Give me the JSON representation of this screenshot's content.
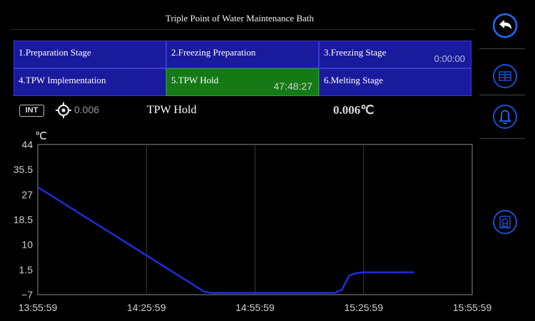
{
  "header": {
    "title": "Triple Point of Water Maintenance Bath"
  },
  "stages": [
    {
      "label": "1.Preparation Stage",
      "time": ""
    },
    {
      "label": "2.Freezing Preparation",
      "time": ""
    },
    {
      "label": "3.Freezing Stage",
      "time": "0:00:00"
    },
    {
      "label": "4.TPW Implementation",
      "time": ""
    },
    {
      "label": "5.TPW Hold",
      "time": "47:48:27",
      "active": true
    },
    {
      "label": "6.Melting Stage",
      "time": ""
    }
  ],
  "status": {
    "sensor_badge": "INT",
    "set_value": "0.006",
    "current_stage": "TPW Hold",
    "current_temp": "0.006℃"
  },
  "sidebar": {
    "icons": [
      "back-icon",
      "table-icon",
      "alarm-bell-icon",
      "report-icon"
    ]
  },
  "colors": {
    "accent": "#1a6cff",
    "stage_bg": "#1a1a9c",
    "active_stage_bg": "#157a15",
    "series": "#1c2ee0"
  },
  "chart_data": {
    "type": "line",
    "ylabel": "℃",
    "y_ticks": [
      "44",
      "35.5",
      "27",
      "18.5",
      "10",
      "1.5",
      "−7"
    ],
    "y_tick_values": [
      44,
      35.5,
      27,
      18.5,
      10,
      1.5,
      -7
    ],
    "ylim": [
      -7,
      44
    ],
    "x_ticks": [
      "13:55:59",
      "14:25:59",
      "14:55:59",
      "15:25:59",
      "15:55:59"
    ],
    "x_tick_minutes": [
      0,
      30,
      60,
      90,
      120
    ],
    "xlim_minutes": [
      0,
      120
    ],
    "grid": true,
    "series": [
      {
        "x_minutes": [
          0,
          46,
          48,
          82,
          84,
          86,
          88,
          90,
          92,
          104
        ],
        "y": [
          29.5,
          -6.0,
          -6.4,
          -6.4,
          -5.3,
          -0.5,
          0.3,
          0.6,
          0.6,
          0.6
        ]
      }
    ]
  }
}
